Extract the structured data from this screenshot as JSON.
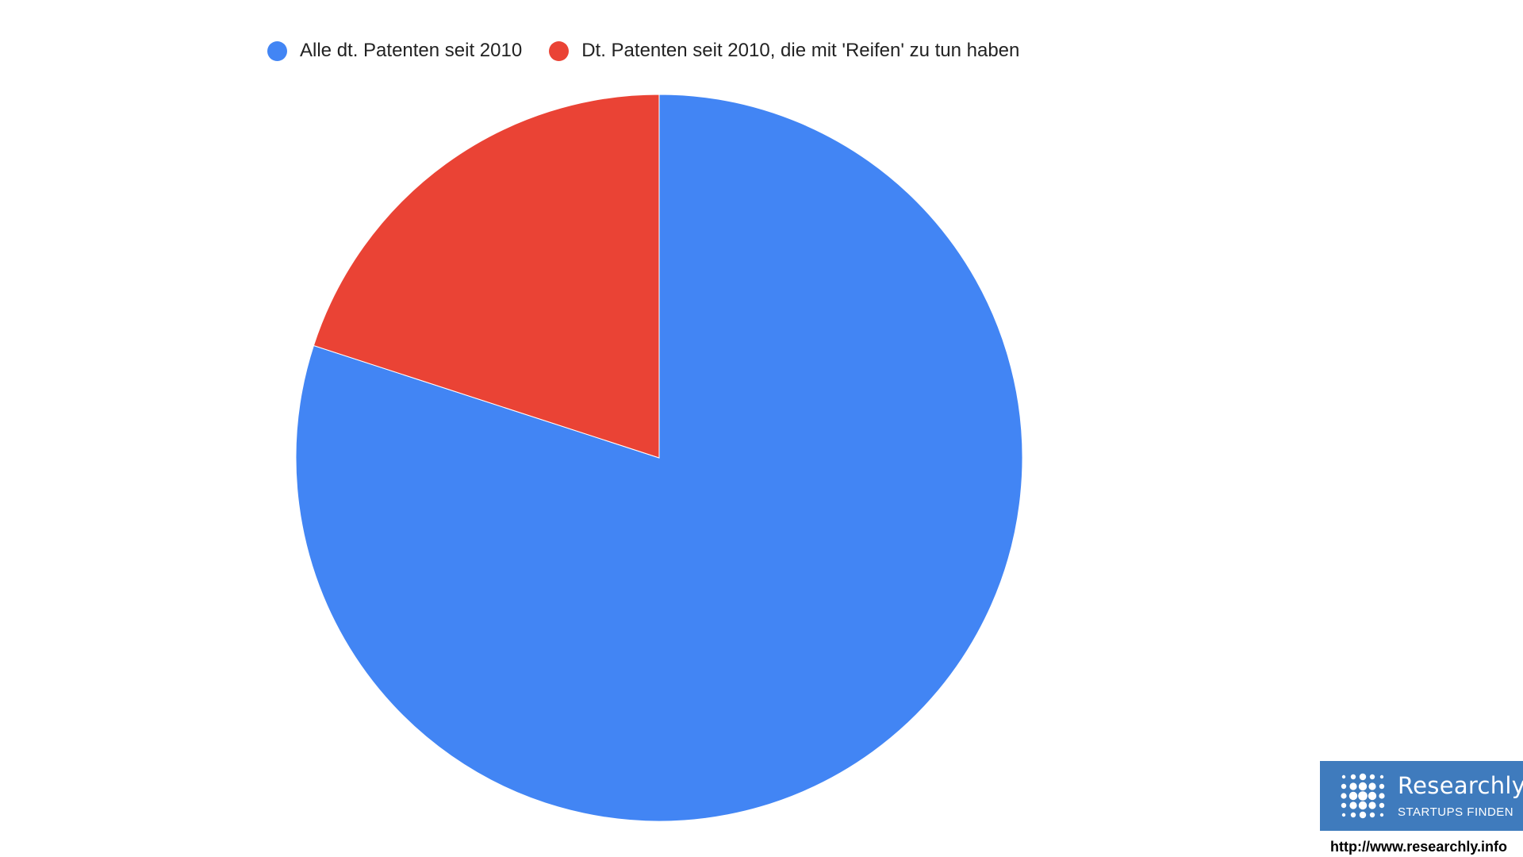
{
  "chart_data": {
    "type": "pie",
    "title": "",
    "slices": [
      {
        "label": "Alle dt. Patenten seit 2010",
        "value": 80,
        "color": "#4285f4"
      },
      {
        "label": "Dt. Patenten seit 2010, die mit 'Reifen' zu tun haben",
        "value": 20,
        "color": "#ea4335"
      }
    ],
    "legend": "top"
  },
  "branding": {
    "logo_name": "Researchly",
    "logo_tagline": "STARTUPS FINDEN",
    "box_color": "#3f7bbd"
  },
  "source_url": "http://www.researchly.info"
}
